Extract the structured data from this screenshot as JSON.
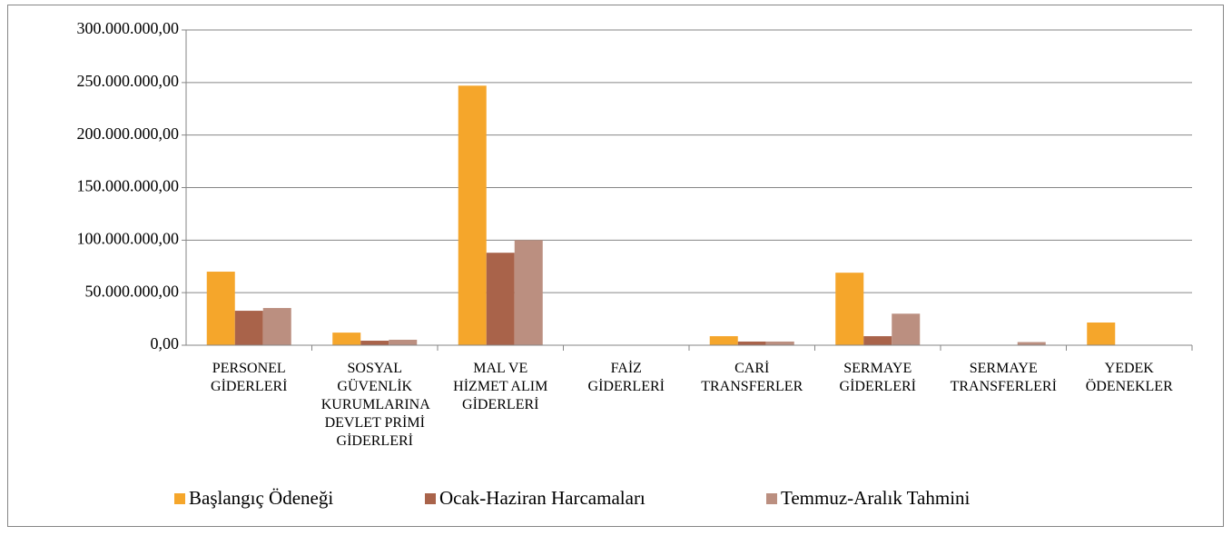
{
  "chart_data": {
    "type": "bar",
    "categories": [
      "PERSONEL GİDERLERİ",
      "SOSYAL GÜVENLİK KURUMLARINA DEVLET PRİMİ GİDERLERİ",
      "MAL VE HİZMET ALIM GİDERLERİ",
      "FAİZ GİDERLERİ",
      "CARİ TRANSFERLER",
      "SERMAYE GİDERLERİ",
      "SERMAYE TRANSFERLERİ",
      "YEDEK ÖDENEKLER"
    ],
    "series": [
      {
        "name": "Başlangıç Ödeneği",
        "color": "#f5a62b",
        "values": [
          70000000,
          12000000,
          247000000,
          0,
          8600000,
          69000000,
          0,
          21600000
        ]
      },
      {
        "name": "Ocak-Haziran Harcamaları",
        "color": "#a9634a",
        "values": [
          32800000,
          4300000,
          88000000,
          0,
          3500000,
          8600000,
          0,
          0
        ]
      },
      {
        "name": "Temmuz-Aralık Tahmini",
        "color": "#bb8f80",
        "values": [
          35400000,
          5200000,
          100000000,
          0,
          3500000,
          30000000,
          3000000,
          0
        ]
      }
    ],
    "ylim": [
      0,
      300000000
    ],
    "yticks": [
      {
        "value": 0,
        "label": "0,00"
      },
      {
        "value": 50000000,
        "label": "50.000.000,00"
      },
      {
        "value": 100000000,
        "label": "100.000.000,00"
      },
      {
        "value": 150000000,
        "label": "150.000.000,00"
      },
      {
        "value": 200000000,
        "label": "200.000.000,00"
      },
      {
        "value": 250000000,
        "label": "250.000.000,00"
      },
      {
        "value": 300000000,
        "label": "300.000.000,00"
      }
    ],
    "grid": true,
    "legend": "bottom"
  }
}
